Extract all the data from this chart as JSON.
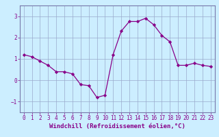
{
  "x": [
    0,
    1,
    2,
    3,
    4,
    5,
    6,
    7,
    8,
    9,
    10,
    11,
    12,
    13,
    14,
    15,
    16,
    17,
    18,
    19,
    20,
    21,
    22,
    23
  ],
  "y": [
    1.2,
    1.1,
    0.9,
    0.7,
    0.4,
    0.4,
    0.3,
    -0.2,
    -0.25,
    -0.8,
    -0.7,
    1.2,
    2.3,
    2.75,
    2.75,
    2.9,
    2.6,
    2.1,
    1.8,
    0.7,
    0.7,
    0.8,
    0.7,
    0.65
  ],
  "xlabel": "Windchill (Refroidissement éolien,°C)",
  "line_color": "#880088",
  "marker": "D",
  "marker_size": 2.2,
  "background_color": "#cceeff",
  "grid_color": "#99aacc",
  "spine_color": "#7777aa",
  "xlim": [
    -0.5,
    23.5
  ],
  "ylim": [
    -1.5,
    3.5
  ],
  "yticks": [
    -1,
    0,
    1,
    2,
    3
  ],
  "xticks": [
    0,
    1,
    2,
    3,
    4,
    5,
    6,
    7,
    8,
    9,
    10,
    11,
    12,
    13,
    14,
    15,
    16,
    17,
    18,
    19,
    20,
    21,
    22,
    23
  ],
  "tick_fontsize": 5.5,
  "xlabel_fontsize": 6.5,
  "tick_color": "#880088",
  "label_color": "#880088"
}
